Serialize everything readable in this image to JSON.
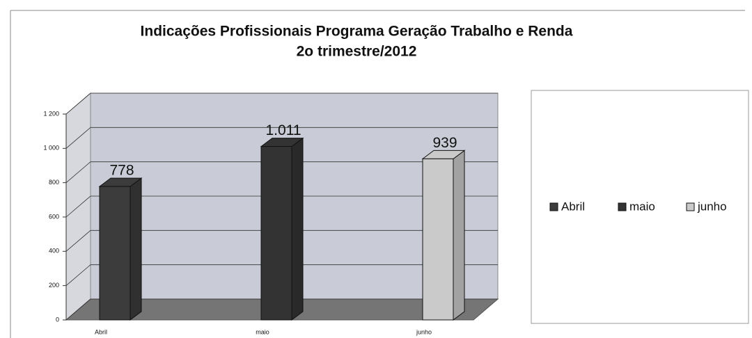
{
  "chart_data": {
    "type": "bar3d",
    "title": "Indicações Profissionais Programa Geração Trabalho e Renda",
    "subtitle": "2o trimestre/2012",
    "categories": [
      "Abril",
      "maio",
      "junho"
    ],
    "values": [
      778,
      1011,
      939
    ],
    "value_labels": [
      "778",
      "1.011",
      "939"
    ],
    "colors": [
      "#3c3c3c",
      "#333333",
      "#cacaca"
    ],
    "ylim": [
      0,
      1200
    ],
    "yticks": [
      0,
      200,
      400,
      600,
      800,
      {
        "value": 1000,
        "label": "1 000"
      },
      {
        "value": 1200,
        "label": "1 200"
      }
    ],
    "grid": true
  }
}
